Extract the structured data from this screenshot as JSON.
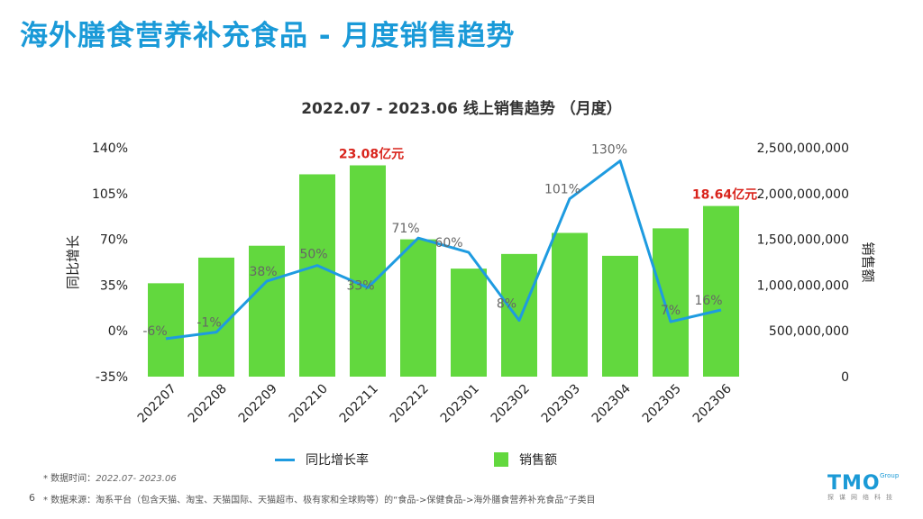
{
  "page": {
    "title": "海外膳食营养补充食品 - 月度销售趋势",
    "page_number": "6",
    "footnote_time_label": "* 数据时间：",
    "footnote_time_value": "2022.07- 2023.06",
    "footnote_source": "* 数据来源：淘系平台（包含天猫、淘宝、天猫国际、天猫超市、极有家和全球购等）的“食品->保健食品->海外膳食营养补充食品”子类目",
    "logo_text": "TMO",
    "logo_sup": "Group",
    "logo_sub": "探谋网络科技"
  },
  "colors": {
    "title": "#1a9ad8",
    "bar": "#62d83e",
    "line": "#1e9be0",
    "highlight": "#d9241c"
  },
  "chart_data": {
    "type": "bar",
    "title": "2022.07 - 2023.06 线上销售趋势 （月度）",
    "categories": [
      "202207",
      "202208",
      "202209",
      "202210",
      "202211",
      "202212",
      "202301",
      "202302",
      "202303",
      "202304",
      "202305",
      "202306"
    ],
    "series": [
      {
        "name": "销售额",
        "type": "bar",
        "axis": "right",
        "values": [
          1020000000,
          1300000000,
          1430000000,
          2210000000,
          2308000000,
          1500000000,
          1180000000,
          1340000000,
          1570000000,
          1320000000,
          1620000000,
          1864000000
        ]
      },
      {
        "name": "同比增长率",
        "type": "line",
        "axis": "left",
        "unit": "%",
        "values": [
          -6,
          -1,
          38,
          50,
          33,
          71,
          60,
          8,
          101,
          130,
          7,
          16
        ]
      }
    ],
    "data_labels": [
      "-6%",
      "-1%",
      "38%",
      "50%",
      "33%",
      "71%",
      "60%",
      "8%",
      "101%",
      "130%",
      "7%",
      "16%"
    ],
    "highlight_labels": [
      {
        "category": "202211",
        "text": "23.08亿元"
      },
      {
        "category": "202306",
        "text": "18.64亿元"
      }
    ],
    "left_axis": {
      "label": "同比增长",
      "ticks": [
        "140%",
        "105%",
        "70%",
        "35%",
        "0%",
        "-35%"
      ],
      "range": [
        -35,
        140
      ]
    },
    "right_axis": {
      "label": "销售额",
      "ticks": [
        "2,500,000,000",
        "2,000,000,000",
        "1,500,000,000",
        "1,000,000,000",
        "500,000,000",
        "0"
      ],
      "range": [
        0,
        2500000000
      ]
    },
    "legend": {
      "position": "bottom",
      "line_label": "同比增长率",
      "bar_label": "销售额"
    },
    "grid": false
  }
}
